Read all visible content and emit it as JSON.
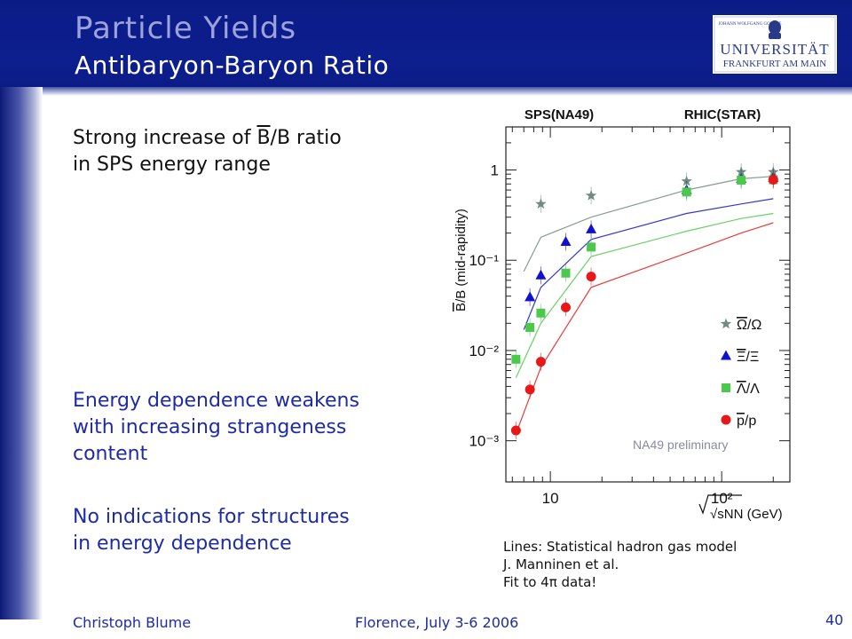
{
  "slide": {
    "title": "Particle Yields",
    "subtitle": "Antibaryon-Baryon Ratio",
    "point1_before": "Strong increase of ",
    "point1_bar": "B",
    "point1_after": "/B ratio",
    "point1_line2": "in SPS energy range",
    "point2": [
      "Energy dependence weakens",
      "with increasing strangeness",
      "content"
    ],
    "point3": [
      "No indications for structures",
      "in energy dependence"
    ],
    "caption": [
      "Lines: Statistical hadron gas model",
      "J. Manninen et al.",
      "Fit to 4π data!"
    ],
    "footer_author": "Christoph Blume",
    "footer_event": "Florence, July 3-6 2006",
    "page_number": "40"
  },
  "logo": {
    "line1": "JOHANN WOLFGANG GOETHE",
    "line2": "UNIVERSITÄT",
    "line3": "FRANKFURT AM MAIN"
  },
  "colors": {
    "header": "#0d1e8e",
    "accent_text": "#1e2ba6",
    "title": "#9aa3dc",
    "omega": "#708b80",
    "xi": "#1010d0",
    "lambda": "#4cc84c",
    "proton": "#e81818"
  },
  "chart_data": {
    "type": "scatter",
    "top_labels": [
      "SPS(NA49)",
      "RHIC(STAR)"
    ],
    "ylabel": "B/B (mid-rapidity)",
    "ylabel_bar": "B",
    "ylabel_rest": "/B (mid-rapidity)",
    "xlabel": "√sNN (GeV)",
    "xscale": "log",
    "yscale": "log",
    "xlim": [
      5.5,
      250
    ],
    "ylim": [
      0.00035,
      3
    ],
    "xticks": [
      {
        "value": 10,
        "label": "10"
      },
      {
        "value": 100,
        "label": "10²"
      }
    ],
    "yticks": [
      {
        "value": 1,
        "label": "1"
      },
      {
        "value": 0.1,
        "label": "10⁻¹"
      },
      {
        "value": 0.01,
        "label": "10⁻²"
      },
      {
        "value": 0.001,
        "label": "10⁻³"
      }
    ],
    "annotation": "NA49 preliminary",
    "legend_position": "right",
    "series": [
      {
        "name": "Ω/Ω",
        "name_bar": "Ω",
        "name_rest": "/Ω",
        "marker": "star",
        "color": "#708b80",
        "x": [
          8.8,
          17.3,
          62.4,
          130,
          200
        ],
        "y": [
          0.42,
          0.52,
          0.75,
          0.95,
          0.95
        ],
        "model_x": [
          7.0,
          8.8,
          17.3,
          62.4,
          130,
          200
        ],
        "model_y": [
          0.075,
          0.18,
          0.3,
          0.6,
          0.8,
          0.85
        ]
      },
      {
        "name": "Ξ/Ξ",
        "name_bar": "Ξ",
        "name_rest": "/Ξ",
        "marker": "triangle",
        "color": "#1010d0",
        "x": [
          7.6,
          8.8,
          12.3,
          17.3,
          62.4,
          130,
          200
        ],
        "y": [
          0.039,
          0.068,
          0.16,
          0.22,
          0.6,
          0.8,
          0.82
        ],
        "model_x": [
          7.0,
          8.8,
          17.3,
          62.4,
          130,
          200
        ],
        "model_y": [
          0.017,
          0.05,
          0.17,
          0.33,
          0.42,
          0.48
        ]
      },
      {
        "name": "Λ/Λ",
        "name_bar": "Λ",
        "name_rest": "/Λ",
        "marker": "square",
        "color": "#4cc84c",
        "x": [
          6.3,
          7.6,
          8.8,
          12.3,
          17.3,
          62.4,
          130,
          200
        ],
        "y": [
          0.008,
          0.018,
          0.026,
          0.072,
          0.14,
          0.57,
          0.77,
          0.78
        ],
        "model_x": [
          6.3,
          8.8,
          17.3,
          62.4,
          130,
          200
        ],
        "model_y": [
          0.005,
          0.02,
          0.11,
          0.21,
          0.29,
          0.33
        ]
      },
      {
        "name": "p/p",
        "name_bar": "p",
        "name_rest": "/p",
        "marker": "circle",
        "color": "#e81818",
        "x": [
          6.3,
          7.6,
          8.8,
          12.3,
          17.3,
          200
        ],
        "y": [
          0.0013,
          0.0037,
          0.0075,
          0.03,
          0.066,
          0.78
        ],
        "model_x": [
          6.3,
          8.8,
          17.3,
          62.4,
          130,
          200
        ],
        "model_y": [
          0.0012,
          0.0065,
          0.05,
          0.12,
          0.2,
          0.26
        ]
      }
    ]
  }
}
